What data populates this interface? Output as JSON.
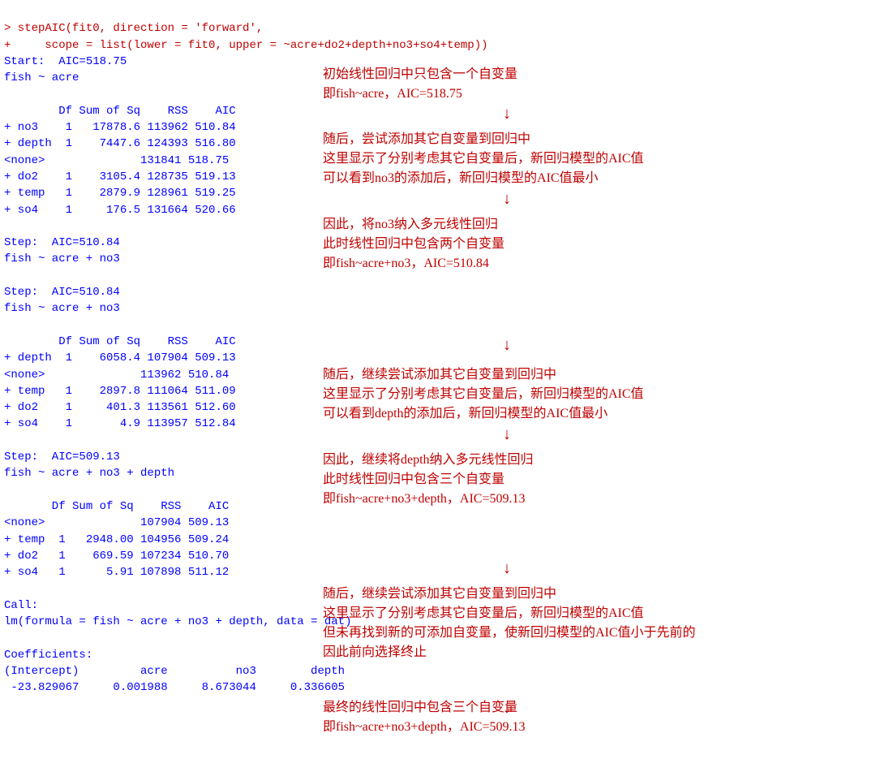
{
  "code": {
    "line1": "> stepAIC(fit0, direction = 'forward',",
    "line2": "+     scope = list(lower = fit0, upper = ~acre+do2+depth+no3+so4+temp))"
  },
  "start": {
    "header": "Start:  AIC=518.75",
    "formula": "fish ~ acre"
  },
  "tableHeader": "        Df Sum of Sq    RSS    AIC",
  "table1": {
    "r1": "+ no3    1   17878.6 113962 510.84",
    "r2": "+ depth  1    7447.6 124393 516.80",
    "r3": "<none>              131841 518.75",
    "r4": "+ do2    1    3105.4 128735 519.13",
    "r5": "+ temp   1    2879.9 128961 519.25",
    "r6": "+ so4    1     176.5 131664 520.66"
  },
  "step1a": {
    "header": "Step:  AIC=510.84",
    "formula": "fish ~ acre + no3"
  },
  "step1b": {
    "header": "Step:  AIC=510.84",
    "formula": "fish ~ acre + no3"
  },
  "table2Header": "        Df Sum of Sq    RSS    AIC",
  "table2": {
    "r1": "+ depth  1    6058.4 107904 509.13",
    "r2": "<none>              113962 510.84",
    "r3": "+ temp   1    2897.8 111064 511.09",
    "r4": "+ do2    1     401.3 113561 512.60",
    "r5": "+ so4    1       4.9 113957 512.84"
  },
  "step2": {
    "header": "Step:  AIC=509.13",
    "formula": "fish ~ acre + no3 + depth"
  },
  "table3Header": "       Df Sum of Sq    RSS    AIC",
  "table3": {
    "r1": "<none>              107904 509.13",
    "r2": "+ temp  1   2948.00 104956 509.24",
    "r3": "+ do2   1    669.59 107234 510.70",
    "r4": "+ so4   1      5.91 107898 511.12"
  },
  "call": {
    "l1": "Call:",
    "l2": "lm(formula = fish ~ acre + no3 + depth, data = dat)"
  },
  "coef": {
    "header": "Coefficients:",
    "names": "(Intercept)         acre          no3        depth  ",
    "values": " -23.829067     0.001988     8.673044     0.336605  "
  },
  "notes": {
    "n1": "初始线性回归中只包含一个自变量\n即fish~acre，AIC=518.75",
    "n2": "随后，尝试添加其它自变量到回归中\n这里显示了分别考虑其它自变量后，新回归模型的AIC值\n可以看到no3的添加后，新回归模型的AIC值最小",
    "n3": "因此，将no3纳入多元线性回归\n此时线性回归中包含两个自变量\n即fish~acre+no3，AIC=510.84",
    "n4": "随后，继续尝试添加其它自变量到回归中\n这里显示了分别考虑其它自变量后，新回归模型的AIC值\n可以看到depth的添加后，新回归模型的AIC值最小",
    "n5": "因此，继续将depth纳入多元线性回归\n此时线性回归中包含三个自变量\n即fish~acre+no3+depth，AIC=509.13",
    "n6": "随后，继续尝试添加其它自变量到回归中\n这里显示了分别考虑其它自变量后，新回归模型的AIC值\n但未再找到新的可添加自变量，使新回归模型的AIC值小于先前的\n因此前向选择终止",
    "n7": "最终的线性回归中包含三个自变量\n即fish~acre+no3+depth，AIC=509.13"
  },
  "arrowGlyph": "↓",
  "layout": {
    "noteLeft": 398,
    "arrowLeft": 620,
    "n1Top": 80,
    "a1Top": 130,
    "n2Top": 160,
    "a2Top": 235,
    "n3Top": 265,
    "a3Top": 415,
    "n4Top": 450,
    "a4Top": 525,
    "n5Top": 555,
    "a5Top": 690,
    "n6Top": 720,
    "a6Top": 862,
    "n7Top": 860
  }
}
